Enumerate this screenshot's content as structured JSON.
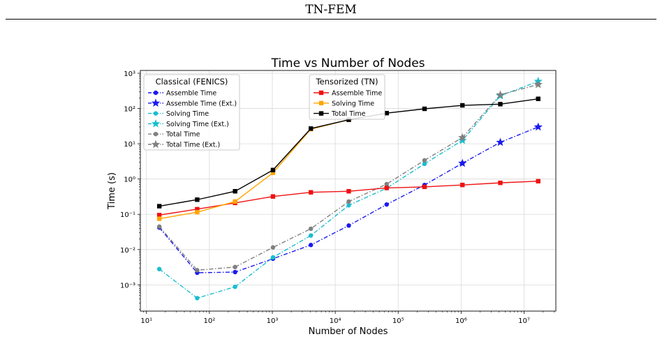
{
  "header": {
    "title": "TN-FEM"
  },
  "chart_data": {
    "type": "line",
    "title": "Time vs Number of Nodes",
    "xlabel": "Number of Nodes",
    "ylabel": "Time (s)",
    "xscale": "log",
    "yscale": "log",
    "xlim": [
      8,
      32000000.0
    ],
    "ylim": [
      0.00018,
      1200
    ],
    "grid": true,
    "x_ticks": [
      {
        "value": 10,
        "label": "10¹"
      },
      {
        "value": 100,
        "label": "10²"
      },
      {
        "value": 1000,
        "label": "10³"
      },
      {
        "value": 10000,
        "label": "10⁴"
      },
      {
        "value": 100000,
        "label": "10⁵"
      },
      {
        "value": 1000000,
        "label": "10⁶"
      },
      {
        "value": 10000000,
        "label": "10⁷"
      }
    ],
    "y_ticks": [
      {
        "value": 0.001,
        "label": "10⁻³"
      },
      {
        "value": 0.01,
        "label": "10⁻²"
      },
      {
        "value": 0.1,
        "label": "10⁻¹"
      },
      {
        "value": 1,
        "label": "10⁰"
      },
      {
        "value": 10,
        "label": "10¹"
      },
      {
        "value": 100,
        "label": "10²"
      },
      {
        "value": 1000,
        "label": "10³"
      }
    ],
    "legends": [
      {
        "title": "Classical (FENICS)",
        "placement": "top-left",
        "entries": [
          "Assemble Time",
          "Assemble Time (Ext.)",
          "Solving Time",
          "Solving Time (Ext.)",
          "Total Time",
          "Total Time (Ext.)"
        ]
      },
      {
        "title": "Tensorized (TN)",
        "placement": "top-center",
        "entries": [
          "Assemble Time",
          "Solving Time",
          "Total Time"
        ]
      }
    ],
    "series": [
      {
        "name": "Assemble Time",
        "group": "Classical (FENICS)",
        "color": "#1a1aee",
        "marker": "circle",
        "dash": "dashdot",
        "x": [
          16,
          64,
          256,
          1024,
          4096,
          16384,
          65536,
          262144,
          1048576
        ],
        "y": [
          0.042,
          0.0022,
          0.0023,
          0.0055,
          0.0135,
          0.048,
          0.19,
          0.68,
          2.8
        ]
      },
      {
        "name": "Assemble Time (Ext.)",
        "group": "Classical (FENICS)",
        "color": "#1a1aee",
        "marker": "star",
        "dash": "dashdot",
        "x": [
          1048576,
          4194304,
          16777216
        ],
        "y": [
          2.8,
          11,
          30
        ]
      },
      {
        "name": "Solving Time",
        "group": "Classical (FENICS)",
        "color": "#17becf",
        "marker": "circle",
        "dash": "dashdot",
        "x": [
          16,
          64,
          256,
          1024,
          4096,
          16384,
          65536,
          262144,
          1048576
        ],
        "y": [
          0.0028,
          0.00042,
          0.00088,
          0.006,
          0.025,
          0.18,
          0.55,
          2.7,
          12.5
        ]
      },
      {
        "name": "Solving Time (Ext.)",
        "group": "Classical (FENICS)",
        "color": "#17becf",
        "marker": "star",
        "dash": "dashdot",
        "x": [
          1048576,
          4194304,
          16777216
        ],
        "y": [
          12.5,
          230,
          590
        ]
      },
      {
        "name": "Total Time",
        "group": "Classical (FENICS)",
        "color": "#808080",
        "marker": "circle",
        "dash": "dashdot",
        "x": [
          16,
          64,
          256,
          1024,
          4096,
          16384,
          65536,
          262144,
          1048576
        ],
        "y": [
          0.045,
          0.0026,
          0.0032,
          0.0115,
          0.039,
          0.23,
          0.72,
          3.4,
          15
        ]
      },
      {
        "name": "Total Time (Ext.)",
        "group": "Classical (FENICS)",
        "color": "#808080",
        "marker": "star",
        "dash": "dashdot",
        "x": [
          1048576,
          4194304,
          16777216
        ],
        "y": [
          15,
          245,
          480
        ]
      },
      {
        "name": "Assemble Time",
        "group": "Tensorized (TN)",
        "color": "#ee1111",
        "marker": "square",
        "dash": "solid",
        "x": [
          16,
          64,
          256,
          1024,
          4096,
          16384,
          65536,
          262144,
          1048576,
          4194304,
          16777216
        ],
        "y": [
          0.095,
          0.14,
          0.21,
          0.32,
          0.42,
          0.45,
          0.56,
          0.6,
          0.68,
          0.78,
          0.87
        ]
      },
      {
        "name": "Solving Time",
        "group": "Tensorized (TN)",
        "color": "#ffa500",
        "marker": "square",
        "dash": "solid",
        "x": [
          16,
          64,
          256,
          1024,
          4096,
          16384
        ],
        "y": [
          0.075,
          0.115,
          0.23,
          1.5,
          26,
          48
        ]
      },
      {
        "name": "Total Time",
        "group": "Tensorized (TN)",
        "color": "#000000",
        "marker": "square",
        "dash": "solid",
        "x": [
          16,
          64,
          256,
          1024,
          4096,
          16384,
          65536,
          262144,
          1048576,
          4194304,
          16777216
        ],
        "y": [
          0.17,
          0.26,
          0.45,
          1.8,
          27,
          48,
          74,
          98,
          123,
          133,
          188
        ]
      }
    ]
  }
}
